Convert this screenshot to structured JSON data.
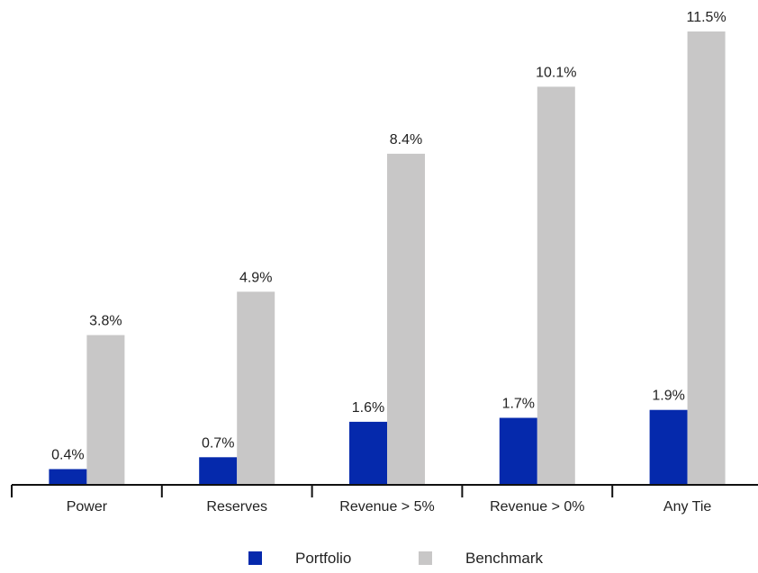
{
  "chart_data": {
    "type": "bar",
    "title": "",
    "xlabel": "",
    "ylabel": "",
    "categories": [
      "Power",
      "Reserves",
      "Revenue > 5%",
      "Revenue > 0%",
      "Any Tie"
    ],
    "series": [
      {
        "name": "Portfolio",
        "color": "#0529ac",
        "values": [
          0.4,
          0.7,
          1.6,
          1.7,
          1.9
        ],
        "labels": [
          "0.4%",
          "0.7%",
          "1.6%",
          "1.7%",
          "1.9%"
        ]
      },
      {
        "name": "Benchmark",
        "color": "#c8c7c7",
        "values": [
          3.8,
          4.9,
          8.4,
          10.1,
          11.5
        ],
        "labels": [
          "3.8%",
          "4.9%",
          "8.4%",
          "10.1%",
          "11.5%"
        ]
      }
    ],
    "ylim": [
      0,
      11.5
    ],
    "value_suffix": "%",
    "grid": false,
    "y_axis_visible": false,
    "legend_position": "bottom-center"
  }
}
